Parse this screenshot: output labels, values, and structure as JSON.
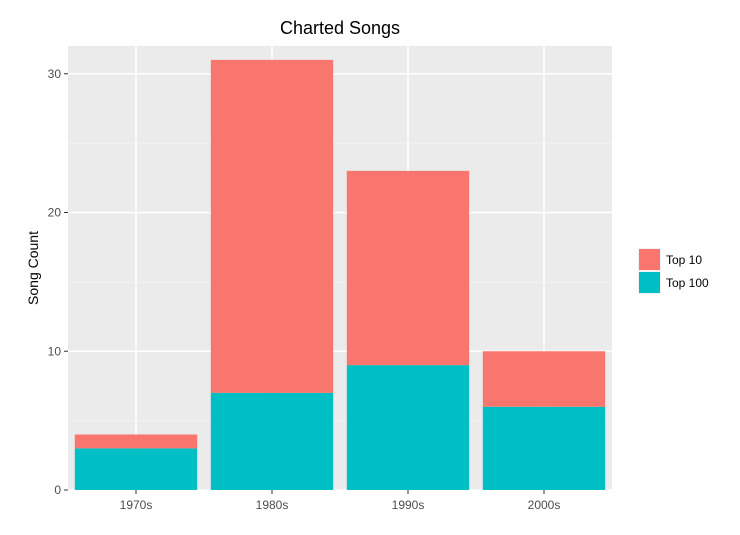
{
  "chart_data": {
    "type": "bar",
    "stacked": true,
    "title": "Charted Songs",
    "xlabel": "",
    "ylabel": "Song Count",
    "categories": [
      "1970s",
      "1980s",
      "1990s",
      "2000s"
    ],
    "series": [
      {
        "name": "Top 100",
        "color": "#00BFC4",
        "values": [
          3,
          7,
          9,
          6
        ]
      },
      {
        "name": "Top 10",
        "color": "#F8766D",
        "values": [
          1,
          24,
          14,
          4
        ]
      }
    ],
    "legend_order": [
      "Top 10",
      "Top 100"
    ],
    "ylim": [
      0,
      32
    ],
    "yticks": [
      0,
      10,
      20,
      30
    ],
    "grid": true,
    "legend_position": "right"
  }
}
